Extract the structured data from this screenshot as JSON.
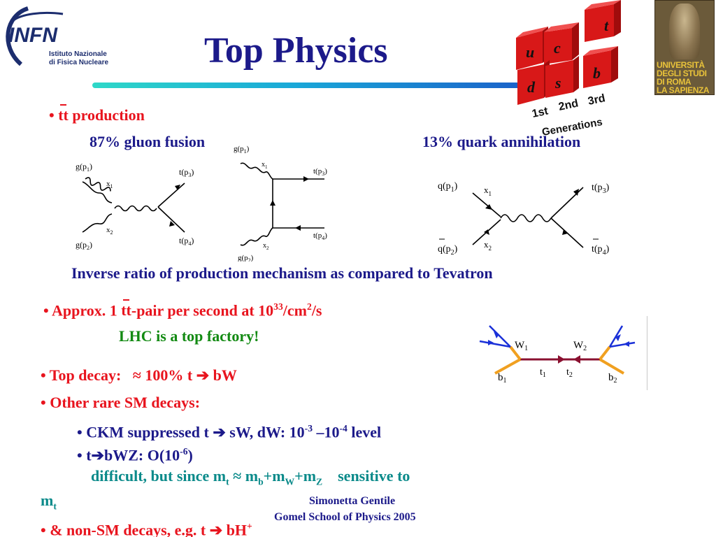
{
  "header": {
    "title": "Top Physics"
  },
  "logos": {
    "infn_name": "INFN",
    "infn_line1": "Istituto Nazionale",
    "infn_line2": "di Fisica Nucleare",
    "sapienza_lines": [
      "UNIVERSITÀ",
      "DEGLI STUDI",
      "DI ROMA",
      "LA SAPIENZA"
    ]
  },
  "generations": {
    "quarks": [
      "u",
      "c",
      "t",
      "d",
      "s",
      "b"
    ],
    "labels": [
      "1st",
      "2nd",
      "3rd"
    ],
    "caption": "Generations"
  },
  "production": {
    "bullet_prefix": "• ",
    "tt": "tt",
    "label": " production",
    "gluon_fusion": "87% gluon fusion",
    "quark_annihilation": "13% quark annihilation",
    "ratio_note": "Inverse ratio of production mechanism as compared to Tevatron"
  },
  "diagrams": {
    "d1": {
      "g1": "g(p",
      "g1s": "1",
      "g2": "g(p",
      "g2s": "2",
      "x1": "x",
      "x2": "x",
      "t3": "t(p",
      "t3s": "3",
      "t4": "t(p",
      "t4s": "4"
    },
    "d2": {
      "g1": "g(p",
      "g1s": "1",
      "g2": "g(p",
      "g2s": "2",
      "x1": "x",
      "x2": "x",
      "t3": "t(p",
      "t3s": "3",
      "t4": "t(p",
      "t4s": "4"
    },
    "d3": {
      "q1": "q(p",
      "q1s": "1",
      "q2": "q(p",
      "q2s": "2",
      "x1": "x",
      "x2": "x",
      "t3": "t(p",
      "t3s": "3",
      "t4": "t(p",
      "t4s": "4"
    }
  },
  "rate": {
    "prefix": "• Approx. 1 ",
    "tt": "tt",
    "text": "-pair per second at 10",
    "exp": "33",
    "unit": "/cm",
    "unit_exp": "2",
    "unit_end": "/s",
    "factory": "LHC is a top factory!"
  },
  "decay_diagram": {
    "w1": "W",
    "w1s": "1",
    "w2": "W",
    "w2s": "2",
    "t1": "t",
    "t1s": "1",
    "t2": "t",
    "t2s": "2",
    "b1": "b",
    "b1s": "1",
    "b2": "b",
    "b2s": "2"
  },
  "decays": {
    "top_decay_label": "• Top decay:",
    "top_decay_value": "≈ 100% t",
    "top_decay_arrow": "➔",
    "top_decay_product": "bW",
    "rare_label": "• Other rare SM decays:",
    "ckm_prefix": "• CKM suppressed t ",
    "ckm_arrow": "➔",
    "ckm_channels": " sW, dW:  10",
    "ckm_exp1": "-3",
    "ckm_mid": " –10",
    "ckm_exp2": "-4",
    "ckm_end": " level",
    "bwz_prefix": "• t",
    "bwz_arrow": "➔",
    "bwz_text": "bWZ:   O(10",
    "bwz_exp": "-6",
    "bwz_end": ")",
    "difficult_text": "difficult, but since m",
    "mt_sub": "t",
    "approx": " ≈ m",
    "mb_sub": "b",
    "plus_mw": "+m",
    "mw_sub": "W",
    "plus_mz": "+m",
    "mz_sub": "Z",
    "sensitive": "    sensitive to",
    "mt_line": "m",
    "mt_line_sub": "t",
    "nonsm_prefix": "• & non-SM decays, e.g. t ",
    "nonsm_arrow": "➔",
    "nonsm_text": " bH",
    "nonsm_sup": "+"
  },
  "footer": {
    "author": "Simonetta Gentile",
    "school": "Gomel School of Physics 2005"
  }
}
